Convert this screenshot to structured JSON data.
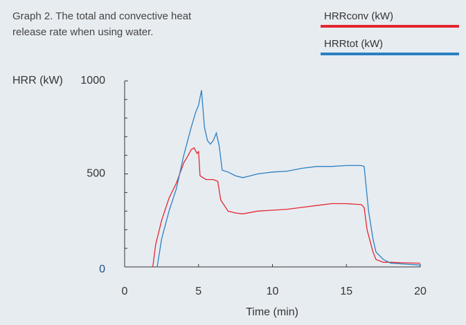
{
  "chart_data": {
    "type": "line",
    "title": "Graph 2. The total and convective heat release rate when using water.",
    "y_label": "HRR (kW)",
    "x_label": "Time (min)",
    "xlim": [
      0,
      20
    ],
    "xticks": [
      0,
      5,
      10,
      15,
      20
    ],
    "ylim": [
      0,
      1000
    ],
    "yticks": [
      0,
      500,
      1000
    ],
    "y_minor_ticks": [
      100,
      200,
      300,
      400,
      600,
      700,
      800,
      900
    ],
    "series": [
      {
        "name": "HRRconv (kW)",
        "color": "#e3262f",
        "x": [
          1.9,
          2.1,
          2.5,
          3,
          3.5,
          4,
          4.3,
          4.5,
          4.7,
          4.9,
          5,
          5.1,
          5.3,
          5.5,
          6,
          6.3,
          6.5,
          7,
          7.5,
          8,
          9,
          10,
          11,
          12,
          13,
          14,
          15,
          16,
          16.2,
          16.4,
          16.8,
          17,
          17.5,
          18,
          19,
          20
        ],
        "values": [
          0,
          120,
          250,
          370,
          450,
          560,
          600,
          630,
          640,
          610,
          620,
          490,
          480,
          470,
          470,
          460,
          360,
          300,
          290,
          285,
          300,
          305,
          310,
          320,
          330,
          340,
          340,
          335,
          320,
          200,
          80,
          40,
          25,
          25,
          22,
          20
        ]
      },
      {
        "name": "HRRtot (kW)",
        "color": "#2a7fc1",
        "x": [
          2.2,
          2.5,
          3,
          3.5,
          4,
          4.5,
          4.8,
          5,
          5.2,
          5.4,
          5.6,
          5.8,
          6,
          6.2,
          6.4,
          6.6,
          7,
          7.5,
          8,
          8.5,
          9,
          10,
          11,
          12,
          13,
          14,
          15,
          16,
          16.2,
          16.5,
          16.8,
          17,
          17.5,
          18,
          19,
          20
        ],
        "values": [
          0,
          150,
          300,
          420,
          600,
          750,
          830,
          870,
          950,
          750,
          680,
          660,
          680,
          720,
          650,
          520,
          510,
          490,
          480,
          490,
          500,
          510,
          515,
          530,
          540,
          540,
          545,
          545,
          540,
          300,
          150,
          80,
          40,
          20,
          15,
          10
        ]
      }
    ]
  }
}
